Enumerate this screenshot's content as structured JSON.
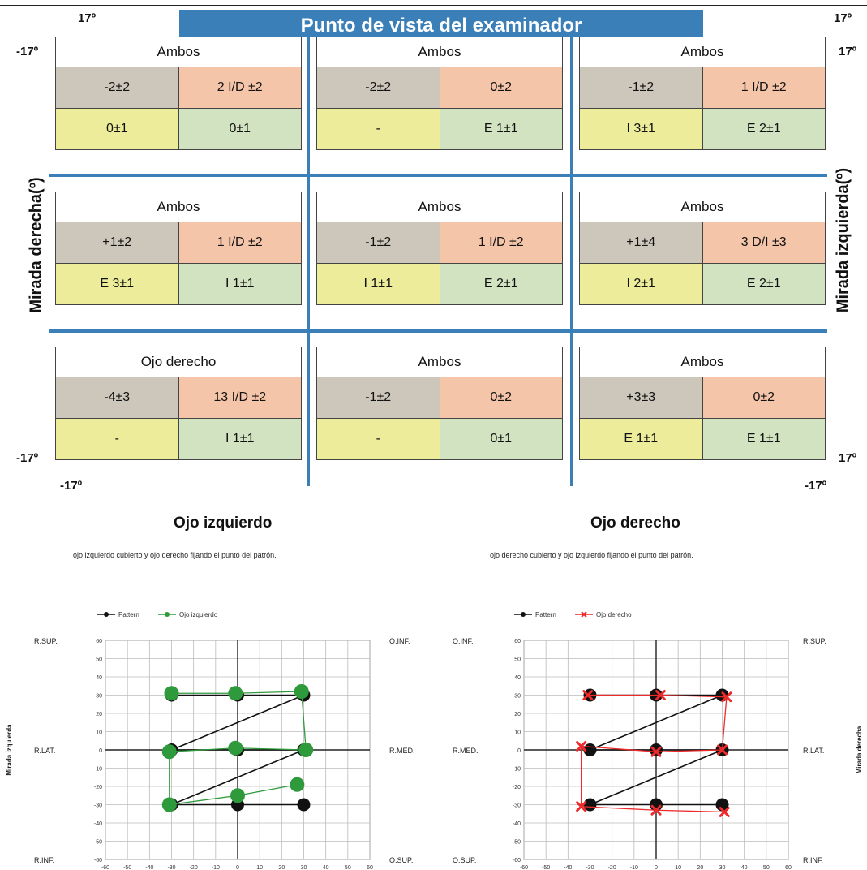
{
  "banner": "Punto de vista del examinador",
  "degrees": {
    "pos": "17º",
    "neg": "-17º"
  },
  "side_labels": {
    "left": "Mirada derecha(º)",
    "right": "Mirada izquierda(º)"
  },
  "grid": [
    {
      "header": "Ambos",
      "cells": [
        "-2±2",
        "2 I/D ±2",
        "0±1",
        "0±1"
      ]
    },
    {
      "header": "Ambos",
      "cells": [
        "-2±2",
        "0±2",
        "-",
        "E 1±1"
      ]
    },
    {
      "header": "Ambos",
      "cells": [
        "-1±2",
        "1 I/D ±2",
        "I 3±1",
        "E 2±1"
      ]
    },
    {
      "header": "Ambos",
      "cells": [
        "+1±2",
        "1 I/D ±2",
        "E 3±1",
        "I 1±1"
      ]
    },
    {
      "header": "Ambos",
      "cells": [
        "-1±2",
        "1 I/D ±2",
        "I 1±1",
        "E 2±1"
      ]
    },
    {
      "header": "Ambos",
      "cells": [
        "+1±4",
        "3 D/I ±3",
        "I 2±1",
        "E 2±1"
      ]
    },
    {
      "header": "Ojo derecho",
      "cells": [
        "-4±3",
        "13 I/D ±2",
        "-",
        "I 1±1"
      ]
    },
    {
      "header": "Ambos",
      "cells": [
        "-1±2",
        "0±2",
        "-",
        "0±1"
      ]
    },
    {
      "header": "Ambos",
      "cells": [
        "+3±3",
        "0±2",
        "E 1±1",
        "E 1±1"
      ]
    }
  ],
  "left_eye": {
    "title": "Ojo izquierdo",
    "description": "ojo izquierdo cubierto y ojo derecho fijando el punto del patrón."
  },
  "right_eye": {
    "title": "Ojo derecho",
    "description": "ojo derecho cubierto y ojo izquierdo fijando el punto del patrón."
  },
  "colors": {
    "banner": "#3b7fb8",
    "cell_gray": "#cdc7bb",
    "cell_peach": "#f4c5a9",
    "cell_yellow": "#ecec9a",
    "cell_green": "#d2e3c1",
    "pattern": "#111111",
    "left_eye_series": "#2e9a3c",
    "right_eye_series": "#ee2a2a"
  },
  "chart_data": [
    {
      "type": "scatter",
      "title": "",
      "xlabel": "",
      "ylabel": "Mirada izquierda",
      "xlim": [
        -60,
        60
      ],
      "ylim": [
        -60,
        60
      ],
      "ticks": [
        "-60",
        "-50",
        "-40",
        "-30",
        "-20",
        "-10",
        "0",
        "10",
        "20",
        "30",
        "40",
        "50",
        "60"
      ],
      "grid": true,
      "legend_position": "top-left",
      "corner_labels": {
        "top_left": "R.SUP.",
        "top_right": "O.INF.",
        "mid_left": "R.LAT.",
        "mid_right": "R.MED.",
        "bottom_left": "R.INF.",
        "bottom_right": "O.SUP."
      },
      "series": [
        {
          "name": "Pattern",
          "marker": "circle",
          "color": "#111111",
          "x": [
            -30,
            0,
            30,
            -30,
            0,
            30,
            -30,
            0,
            30
          ],
          "y": [
            30,
            30,
            30,
            0,
            0,
            0,
            -30,
            -30,
            -30
          ]
        },
        {
          "name": "Ojo izquierdo",
          "marker": "circle",
          "color": "#2e9a3c",
          "x": [
            -30,
            -1,
            29,
            31,
            -1,
            -31,
            -31,
            0,
            27
          ],
          "y": [
            31,
            31,
            32,
            0,
            1,
            -1,
            -30,
            -25,
            -19
          ]
        }
      ]
    },
    {
      "type": "scatter",
      "title": "",
      "xlabel": "",
      "ylabel": "Mirada derecha",
      "xlim": [
        -60,
        60
      ],
      "ylim": [
        -60,
        60
      ],
      "ticks": [
        "-60",
        "-50",
        "-40",
        "-30",
        "-20",
        "-10",
        "0",
        "10",
        "20",
        "30",
        "40",
        "50",
        "60"
      ],
      "grid": true,
      "legend_position": "top-left",
      "corner_labels": {
        "top_left": "O.INF.",
        "top_right": "R.SUP.",
        "mid_left": "R.MED.",
        "mid_right": "R.LAT.",
        "bottom_left": "O.SUP.",
        "bottom_right": "R.INF."
      },
      "series": [
        {
          "name": "Pattern",
          "marker": "circle",
          "color": "#111111",
          "x": [
            -30,
            0,
            30,
            -30,
            0,
            30,
            -30,
            0,
            30
          ],
          "y": [
            30,
            30,
            30,
            0,
            0,
            0,
            -30,
            -30,
            -30
          ]
        },
        {
          "name": "Ojo derecho",
          "marker": "x",
          "color": "#ee2a2a",
          "x": [
            -31,
            2,
            32,
            30,
            0,
            -34,
            -34,
            0,
            31
          ],
          "y": [
            30,
            30,
            29,
            0,
            -1,
            2,
            -31,
            -33,
            -34
          ]
        }
      ]
    }
  ]
}
